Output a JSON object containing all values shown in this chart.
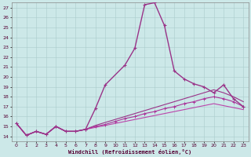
{
  "xlabel": "Windchill (Refroidissement éolien,°C)",
  "background_color": "#cce8e8",
  "grid_color": "#aacccc",
  "xlim": [
    -0.5,
    23.5
  ],
  "ylim": [
    13.5,
    27.5
  ],
  "ytick_labels": [
    "14",
    "15",
    "16",
    "17",
    "18",
    "19",
    "20",
    "21",
    "22",
    "23",
    "24",
    "25",
    "26",
    "27"
  ],
  "ytick_vals": [
    14,
    15,
    16,
    17,
    18,
    19,
    20,
    21,
    22,
    23,
    24,
    25,
    26,
    27
  ],
  "xtick_vals": [
    0,
    1,
    2,
    3,
    4,
    5,
    6,
    7,
    8,
    9,
    10,
    11,
    12,
    13,
    14,
    15,
    16,
    17,
    18,
    19,
    20,
    21,
    22,
    23
  ],
  "series_main": {
    "x": [
      0,
      1,
      2,
      3,
      4,
      5,
      6,
      7,
      8,
      9,
      11,
      12,
      13,
      14,
      15,
      16,
      17,
      18,
      19,
      20,
      21,
      22,
      23
    ],
    "y": [
      15.3,
      14.1,
      14.5,
      14.2,
      15.0,
      14.5,
      14.5,
      14.7,
      16.8,
      19.2,
      21.2,
      22.9,
      27.3,
      27.5,
      25.2,
      20.6,
      19.8,
      19.3,
      19.0,
      18.4,
      19.2,
      17.8,
      17.0
    ],
    "color": "#993388",
    "marker": "+",
    "markersize": 3.5,
    "linewidth": 1.0
  },
  "series_line1": {
    "x": [
      0,
      1,
      2,
      3,
      4,
      5,
      6,
      7,
      8,
      9,
      10,
      11,
      12,
      13,
      14,
      15,
      16,
      17,
      18,
      19,
      20,
      21,
      22,
      23
    ],
    "y": [
      15.3,
      14.1,
      14.5,
      14.2,
      15.0,
      14.5,
      14.5,
      14.7,
      15.0,
      15.2,
      15.5,
      15.8,
      16.0,
      16.3,
      16.5,
      16.8,
      17.0,
      17.3,
      17.5,
      17.8,
      18.0,
      17.8,
      17.5,
      17.0
    ],
    "color": "#aa3399",
    "marker": "+",
    "markersize": 3.0,
    "linewidth": 0.8
  },
  "series_line2": {
    "x": [
      0,
      1,
      2,
      3,
      4,
      5,
      6,
      7,
      8,
      9,
      10,
      11,
      12,
      13,
      14,
      15,
      16,
      17,
      18,
      19,
      20,
      21,
      22,
      23
    ],
    "y": [
      15.3,
      14.1,
      14.5,
      14.2,
      15.0,
      14.5,
      14.5,
      14.7,
      15.1,
      15.4,
      15.7,
      16.0,
      16.3,
      16.6,
      16.9,
      17.2,
      17.5,
      17.8,
      18.1,
      18.4,
      18.7,
      18.4,
      18.0,
      17.5
    ],
    "color": "#993388",
    "marker": null,
    "linewidth": 0.8
  },
  "series_line3": {
    "x": [
      0,
      1,
      2,
      3,
      4,
      5,
      6,
      7,
      8,
      9,
      10,
      11,
      12,
      13,
      14,
      15,
      16,
      17,
      18,
      19,
      20,
      21,
      22,
      23
    ],
    "y": [
      15.3,
      14.1,
      14.5,
      14.2,
      15.0,
      14.5,
      14.5,
      14.7,
      14.9,
      15.1,
      15.3,
      15.5,
      15.7,
      15.9,
      16.1,
      16.3,
      16.5,
      16.7,
      16.9,
      17.1,
      17.3,
      17.1,
      16.9,
      16.7
    ],
    "color": "#bb44aa",
    "marker": null,
    "linewidth": 0.8
  }
}
